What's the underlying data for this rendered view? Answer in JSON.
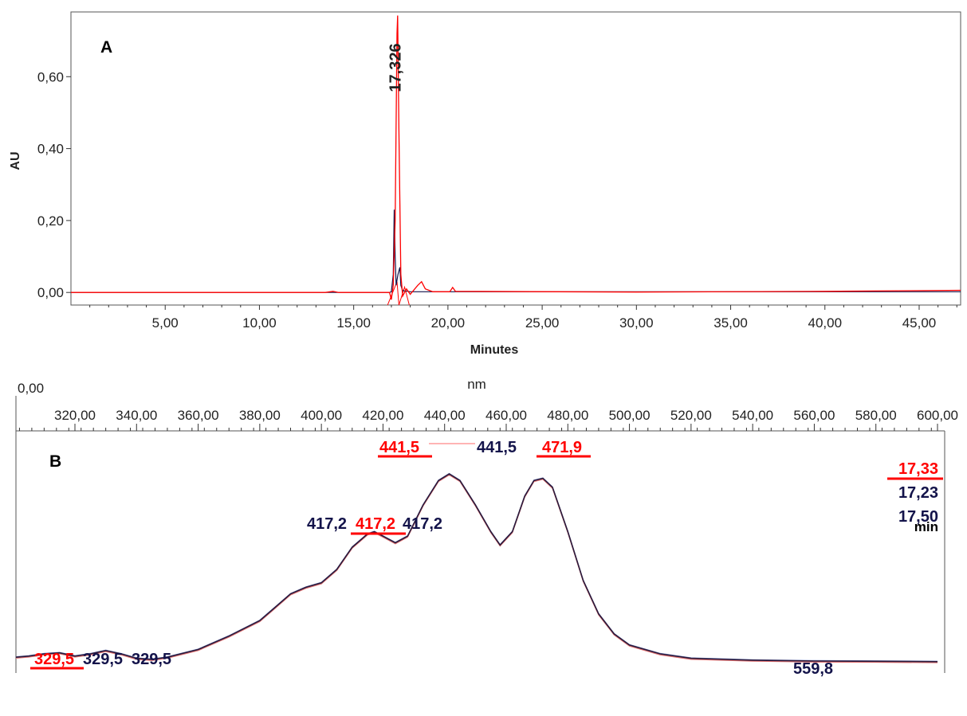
{
  "colors": {
    "red": "#ff0000",
    "navy": "#13134a",
    "axis": "#333333",
    "purple": "#6a4a7a"
  },
  "chart_data": [
    {
      "panel": "A",
      "type": "line",
      "xlabel": "Minutes",
      "ylabel": "AU",
      "xlim": [
        0,
        47.2
      ],
      "ylim": [
        -0.035,
        0.78
      ],
      "x_ticks": [
        {
          "value": 5,
          "label": "5,00"
        },
        {
          "value": 10,
          "label": "10,00"
        },
        {
          "value": 15,
          "label": "15,00"
        },
        {
          "value": 20,
          "label": "20,00"
        },
        {
          "value": 25,
          "label": "25,00"
        },
        {
          "value": 30,
          "label": "30,00"
        },
        {
          "value": 35,
          "label": "35,00"
        },
        {
          "value": 40,
          "label": "40,00"
        },
        {
          "value": 45,
          "label": "45,00"
        }
      ],
      "y_ticks": [
        {
          "value": 0,
          "label": "0,00"
        },
        {
          "value": 0.2,
          "label": "0,20"
        },
        {
          "value": 0.4,
          "label": "0,40"
        },
        {
          "value": 0.6,
          "label": "0,60"
        }
      ],
      "peak_annotation": {
        "x": 17.326,
        "label": "17,326"
      },
      "series": [
        {
          "color": "red",
          "points": [
            [
              0,
              0
            ],
            [
              13.5,
              0
            ],
            [
              13.9,
              0.003
            ],
            [
              14.2,
              0
            ],
            [
              16.9,
              0
            ],
            [
              17.0,
              -0.02
            ],
            [
              17.1,
              0.02
            ],
            [
              17.2,
              0.2
            ],
            [
              17.3,
              0.72
            ],
            [
              17.33,
              0.77
            ],
            [
              17.4,
              0.45
            ],
            [
              17.5,
              0.05
            ],
            [
              17.6,
              -0.01
            ],
            [
              17.8,
              0.01
            ],
            [
              18.0,
              -0.005
            ],
            [
              18.4,
              0.02
            ],
            [
              18.6,
              0.03
            ],
            [
              18.8,
              0.01
            ],
            [
              19.2,
              0.002
            ],
            [
              20.1,
              0.002
            ],
            [
              20.25,
              0.014
            ],
            [
              20.4,
              0.003
            ],
            [
              30,
              0.001
            ],
            [
              40,
              0.003
            ],
            [
              47.2,
              0.006
            ]
          ]
        },
        {
          "color": "navy",
          "points": [
            [
              0,
              0
            ],
            [
              16.9,
              0
            ],
            [
              17.0,
              0.002
            ],
            [
              17.1,
              0.05
            ],
            [
              17.15,
              0.23
            ],
            [
              17.2,
              0.1
            ],
            [
              17.25,
              0.02
            ],
            [
              17.35,
              0.05
            ],
            [
              17.45,
              0.07
            ],
            [
              17.5,
              0.02
            ],
            [
              17.6,
              0.005
            ],
            [
              18,
              0.002
            ],
            [
              47.2,
              0.002
            ]
          ]
        }
      ],
      "triangle_markers": [
        {
          "points": [
            [
              16.8,
              -0.035
            ],
            [
              17.3,
              0.03
            ],
            [
              17.4,
              -0.035
            ]
          ]
        },
        {
          "points": [
            [
              17.4,
              -0.035
            ],
            [
              17.7,
              0.015
            ],
            [
              17.95,
              -0.035
            ]
          ]
        }
      ]
    },
    {
      "panel": "B",
      "type": "line",
      "xlabel": "nm",
      "x_origin_label": "0,00",
      "xlim": [
        300,
        600
      ],
      "x_ticks": [
        {
          "value": 320,
          "label": "320,00"
        },
        {
          "value": 340,
          "label": "340,00"
        },
        {
          "value": 360,
          "label": "360,00"
        },
        {
          "value": 380,
          "label": "380,00"
        },
        {
          "value": 400,
          "label": "400,00"
        },
        {
          "value": 420,
          "label": "420,00"
        },
        {
          "value": 440,
          "label": "440,00"
        },
        {
          "value": 460,
          "label": "460,00"
        },
        {
          "value": 480,
          "label": "480,00"
        },
        {
          "value": 500,
          "label": "500,00"
        },
        {
          "value": 520,
          "label": "520,00"
        },
        {
          "value": 540,
          "label": "540,00"
        },
        {
          "value": 560,
          "label": "560,00"
        },
        {
          "value": 580,
          "label": "580,00"
        },
        {
          "value": 600,
          "label": "600,00"
        }
      ],
      "spectrum": [
        [
          300,
          0.035
        ],
        [
          305,
          0.04
        ],
        [
          310,
          0.05
        ],
        [
          315,
          0.055
        ],
        [
          320,
          0.04
        ],
        [
          325,
          0.05
        ],
        [
          330,
          0.065
        ],
        [
          335,
          0.05
        ],
        [
          340,
          0.03
        ],
        [
          345,
          0.025
        ],
        [
          350,
          0.035
        ],
        [
          360,
          0.07
        ],
        [
          370,
          0.13
        ],
        [
          380,
          0.2
        ],
        [
          385,
          0.26
        ],
        [
          390,
          0.32
        ],
        [
          395,
          0.35
        ],
        [
          400,
          0.37
        ],
        [
          405,
          0.43
        ],
        [
          410,
          0.53
        ],
        [
          415,
          0.59
        ],
        [
          417.2,
          0.6
        ],
        [
          420,
          0.58
        ],
        [
          424,
          0.55
        ],
        [
          428,
          0.58
        ],
        [
          433,
          0.72
        ],
        [
          438,
          0.83
        ],
        [
          441.5,
          0.86
        ],
        [
          445,
          0.83
        ],
        [
          450,
          0.72
        ],
        [
          455,
          0.6
        ],
        [
          458,
          0.54
        ],
        [
          462,
          0.6
        ],
        [
          466,
          0.76
        ],
        [
          469,
          0.83
        ],
        [
          471.9,
          0.84
        ],
        [
          475,
          0.8
        ],
        [
          480,
          0.6
        ],
        [
          485,
          0.38
        ],
        [
          490,
          0.23
        ],
        [
          495,
          0.14
        ],
        [
          500,
          0.09
        ],
        [
          510,
          0.05
        ],
        [
          520,
          0.03
        ],
        [
          540,
          0.022
        ],
        [
          559.8,
          0.018
        ],
        [
          580,
          0.017
        ],
        [
          600,
          0.015
        ]
      ],
      "peak_labels": [
        {
          "text": "441,5",
          "color": "red",
          "underline": true
        },
        {
          "text": "441,5",
          "color": "navy"
        },
        {
          "text": "471,9",
          "color": "red",
          "underline": true
        },
        {
          "text": "417,2",
          "color": "navy"
        },
        {
          "text": "417,2",
          "color": "red",
          "underline": true
        },
        {
          "text": "417,2",
          "color": "navy"
        },
        {
          "text": "329,5",
          "color": "red",
          "underline": true
        },
        {
          "text": "329,5",
          "color": "navy"
        },
        {
          "text": "329,5",
          "color": "navy"
        },
        {
          "text": "559,8",
          "color": "navy"
        }
      ],
      "legend": {
        "entries": [
          {
            "text": "17,33",
            "color": "red",
            "underline": true
          },
          {
            "text": "17,23",
            "color": "navy"
          },
          {
            "text": "17,50",
            "color": "navy"
          }
        ],
        "unit": "min"
      }
    }
  ],
  "panel_labels": {
    "a": "A",
    "b": "B"
  }
}
